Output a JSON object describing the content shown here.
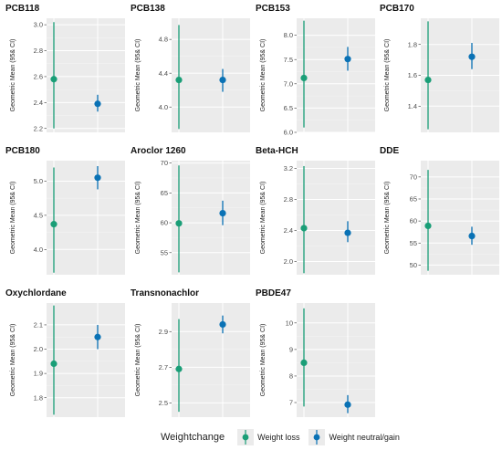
{
  "legend": {
    "title": "Weightchange",
    "items": [
      {
        "label": "Weight loss",
        "color": "#1a9e77"
      },
      {
        "label": "Weight neutral/gain",
        "color": "#0a72b5"
      }
    ]
  },
  "y_axis_label": "Geometric Mean (95& CI)",
  "chart_data": [
    {
      "type": "scatter",
      "title": "PCB118",
      "yticks": [
        2.2,
        2.4,
        2.6,
        2.8,
        3.0
      ],
      "ylim": [
        2.17,
        3.05
      ],
      "series": [
        {
          "name": "Weight loss",
          "mean": 2.58,
          "lower": 2.2,
          "upper": 3.02
        },
        {
          "name": "Weight neutral/gain",
          "mean": 2.39,
          "lower": 2.33,
          "upper": 2.46
        }
      ]
    },
    {
      "type": "scatter",
      "title": "PCB138",
      "yticks": [
        4.0,
        4.4,
        4.8
      ],
      "ylim": [
        3.7,
        5.05
      ],
      "series": [
        {
          "name": "Weight loss",
          "mean": 4.32,
          "lower": 3.74,
          "upper": 4.97
        },
        {
          "name": "Weight neutral/gain",
          "mean": 4.32,
          "lower": 4.18,
          "upper": 4.45
        }
      ]
    },
    {
      "type": "scatter",
      "title": "PCB153",
      "yticks": [
        6.0,
        6.5,
        7.0,
        7.5,
        8.0
      ],
      "ylim": [
        6.0,
        8.35
      ],
      "series": [
        {
          "name": "Weight loss",
          "mean": 7.12,
          "lower": 6.1,
          "upper": 8.3
        },
        {
          "name": "Weight neutral/gain",
          "mean": 7.51,
          "lower": 7.27,
          "upper": 7.76
        }
      ]
    },
    {
      "type": "scatter",
      "title": "PCB170",
      "yticks": [
        1.4,
        1.6,
        1.8
      ],
      "ylim": [
        1.23,
        1.97
      ],
      "series": [
        {
          "name": "Weight loss",
          "mean": 1.57,
          "lower": 1.25,
          "upper": 1.95
        },
        {
          "name": "Weight neutral/gain",
          "mean": 1.72,
          "lower": 1.64,
          "upper": 1.81
        }
      ]
    },
    {
      "type": "scatter",
      "title": "PCB180",
      "yticks": [
        4.0,
        4.5,
        5.0
      ],
      "ylim": [
        3.63,
        5.3
      ],
      "series": [
        {
          "name": "Weight loss",
          "mean": 4.37,
          "lower": 3.66,
          "upper": 5.2
        },
        {
          "name": "Weight neutral/gain",
          "mean": 5.05,
          "lower": 4.88,
          "upper": 5.22
        }
      ]
    },
    {
      "type": "scatter",
      "title": "Aroclor 1260",
      "yticks": [
        55,
        60,
        65,
        70
      ],
      "ylim": [
        51.3,
        70.4
      ],
      "series": [
        {
          "name": "Weight loss",
          "mean": 59.9,
          "lower": 51.7,
          "upper": 69.6
        },
        {
          "name": "Weight neutral/gain",
          "mean": 61.6,
          "lower": 59.6,
          "upper": 63.7
        }
      ]
    },
    {
      "type": "scatter",
      "title": "Beta-HCH",
      "yticks": [
        2.0,
        2.4,
        2.8,
        3.2
      ],
      "ylim": [
        1.83,
        3.3
      ],
      "series": [
        {
          "name": "Weight loss",
          "mean": 2.43,
          "lower": 1.85,
          "upper": 3.23
        },
        {
          "name": "Weight neutral/gain",
          "mean": 2.37,
          "lower": 2.25,
          "upper": 2.52
        }
      ]
    },
    {
      "type": "scatter",
      "title": "DDE",
      "yticks": [
        50,
        55,
        60,
        65,
        70
      ],
      "ylim": [
        47.8,
        73.7
      ],
      "series": [
        {
          "name": "Weight loss",
          "mean": 58.9,
          "lower": 48.7,
          "upper": 71.6
        },
        {
          "name": "Weight neutral/gain",
          "mean": 56.6,
          "lower": 54.6,
          "upper": 58.7
        }
      ]
    },
    {
      "type": "scatter",
      "title": "Oxychlordane",
      "yticks": [
        1.8,
        1.9,
        2.0,
        2.1
      ],
      "ylim": [
        1.72,
        2.19
      ],
      "series": [
        {
          "name": "Weight loss",
          "mean": 1.94,
          "lower": 1.73,
          "upper": 2.18
        },
        {
          "name": "Weight neutral/gain",
          "mean": 2.05,
          "lower": 2.0,
          "upper": 2.1
        }
      ]
    },
    {
      "type": "scatter",
      "title": "Transnonachlor",
      "yticks": [
        2.5,
        2.7,
        2.9
      ],
      "ylim": [
        2.42,
        3.06
      ],
      "series": [
        {
          "name": "Weight loss",
          "mean": 2.69,
          "lower": 2.45,
          "upper": 2.97
        },
        {
          "name": "Weight neutral/gain",
          "mean": 2.94,
          "lower": 2.89,
          "upper": 2.99
        }
      ]
    },
    {
      "type": "scatter",
      "title": "PBDE47",
      "yticks": [
        7,
        8,
        9,
        10
      ],
      "ylim": [
        6.45,
        10.75
      ],
      "series": [
        {
          "name": "Weight loss",
          "mean": 8.5,
          "lower": 6.85,
          "upper": 10.55
        },
        {
          "name": "Weight neutral/gain",
          "mean": 6.92,
          "lower": 6.6,
          "upper": 7.28
        }
      ]
    }
  ]
}
